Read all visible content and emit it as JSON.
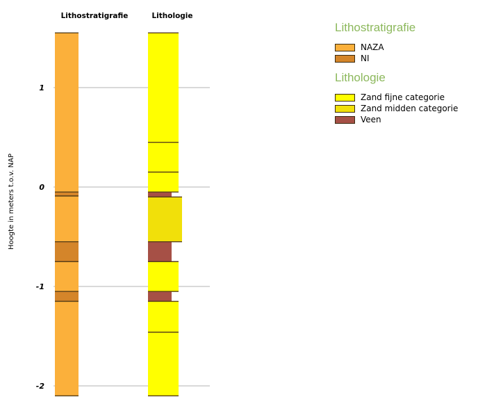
{
  "chart_data": {
    "type": "bar",
    "ylabel": "Hoogte in meters t.o.v. NAP",
    "ylim": [
      -2.1,
      1.6
    ],
    "yticks": [
      1,
      0,
      -1,
      -2
    ],
    "ytick_labels": [
      "1",
      "0",
      "-1",
      "-2"
    ],
    "grid": true,
    "columns": [
      {
        "name": "Lithostratigrafie",
        "intervals": [
          {
            "top": 1.55,
            "bottom": -0.05,
            "unit": "NAZA"
          },
          {
            "top": -0.05,
            "bottom": -0.09,
            "unit": "NI"
          },
          {
            "top": -0.09,
            "bottom": -0.55,
            "unit": "NAZA"
          },
          {
            "top": -0.55,
            "bottom": -0.75,
            "unit": "NI"
          },
          {
            "top": -0.75,
            "bottom": -1.05,
            "unit": "NAZA"
          },
          {
            "top": -1.05,
            "bottom": -1.15,
            "unit": "NI"
          },
          {
            "top": -1.15,
            "bottom": -2.1,
            "unit": "NAZA"
          }
        ]
      },
      {
        "name": "Lithologie",
        "intervals": [
          {
            "top": 1.55,
            "bottom": 0.45,
            "unit": "Zand fijne categorie"
          },
          {
            "top": 0.45,
            "bottom": 0.15,
            "unit": "Zand fijne categorie"
          },
          {
            "top": 0.15,
            "bottom": -0.05,
            "unit": "Zand fijne categorie"
          },
          {
            "top": -0.05,
            "bottom": -0.1,
            "unit": "Veen"
          },
          {
            "top": -0.1,
            "bottom": -0.55,
            "unit": "Zand midden categorie"
          },
          {
            "top": -0.55,
            "bottom": -0.75,
            "unit": "Veen"
          },
          {
            "top": -0.75,
            "bottom": -1.05,
            "unit": "Zand fijne categorie"
          },
          {
            "top": -1.05,
            "bottom": -1.15,
            "unit": "Veen"
          },
          {
            "top": -1.15,
            "bottom": -1.46,
            "unit": "Zand fijne categorie"
          },
          {
            "top": -1.46,
            "bottom": -2.1,
            "unit": "Zand fijne categorie"
          }
        ]
      }
    ]
  },
  "legend": {
    "groups": [
      {
        "title": "Lithostratigrafie",
        "items": [
          {
            "label": "NAZA",
            "color": "#fbb03b"
          },
          {
            "label": "NI",
            "color": "#d4852a"
          }
        ]
      },
      {
        "title": "Lithologie",
        "items": [
          {
            "label": "Zand fijne categorie",
            "color": "#ffff00"
          },
          {
            "label": "Zand midden categorie",
            "color": "#f1e00a"
          },
          {
            "label": "Veen",
            "color": "#a65046"
          }
        ]
      }
    ]
  },
  "lithology_widths": {
    "Zand fijne categorie": "narrow",
    "Zand midden categorie": "wide",
    "Veen": "narrower"
  }
}
